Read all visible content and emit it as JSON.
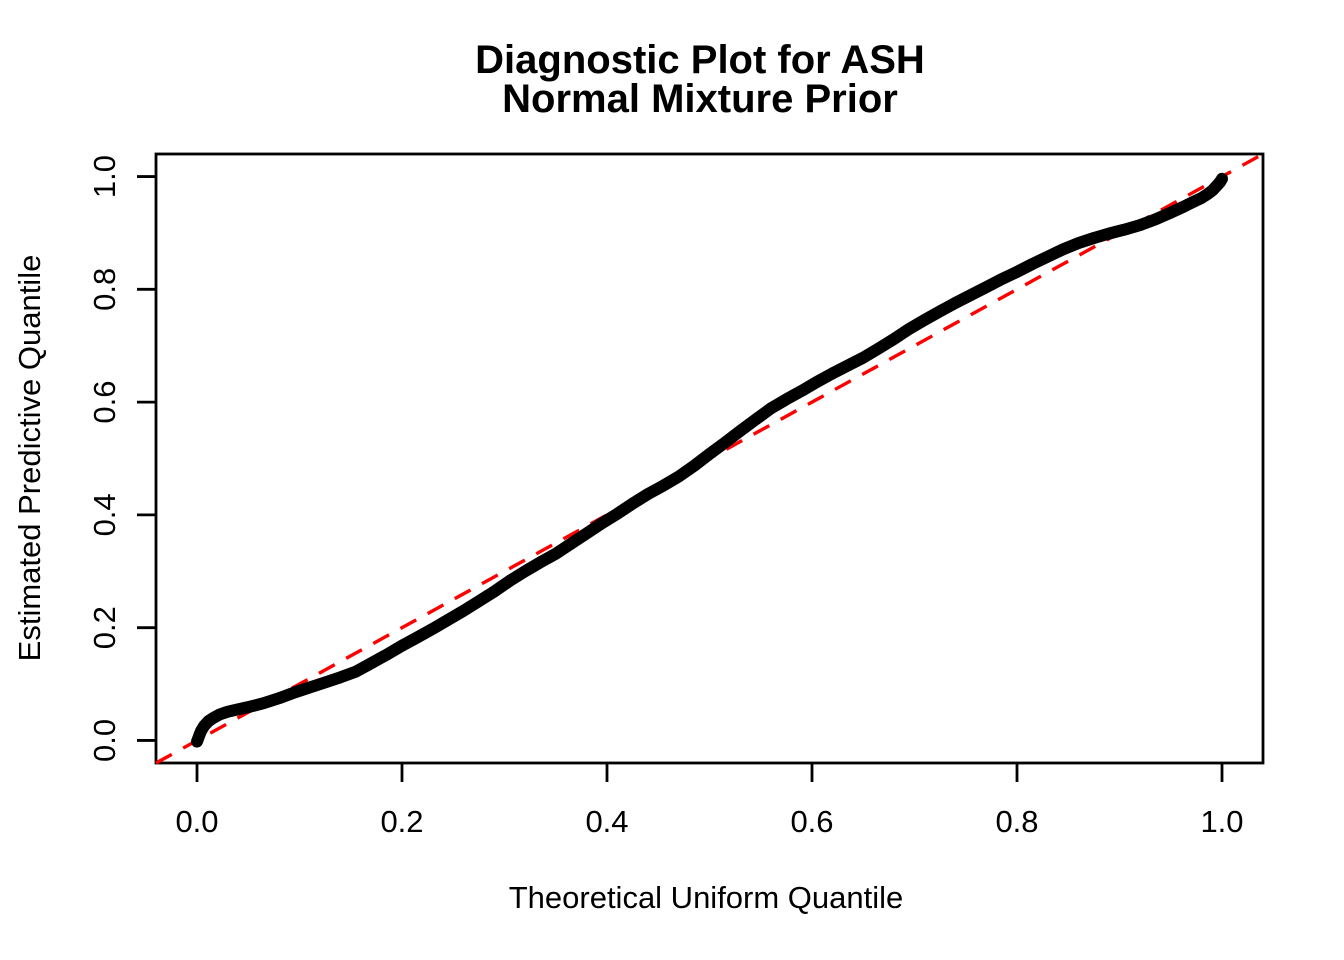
{
  "figure": {
    "title_line1": "Diagnostic Plot for ASH",
    "title_line2": "Normal Mixture Prior",
    "xlabel": "Theoretical Uniform Quantile",
    "ylabel": "Estimated Predictive Quantile"
  },
  "colors": {
    "background": "#ffffff",
    "axis": "#000000",
    "curve": "#000000",
    "reference_line": "#ff0000"
  },
  "chart_data": {
    "type": "line",
    "title": "Diagnostic Plot for ASH\nNormal Mixture Prior",
    "xlabel": "Theoretical Uniform Quantile",
    "ylabel": "Estimated Predictive Quantile",
    "xlim": [
      -0.04,
      1.04
    ],
    "ylim": [
      -0.04,
      1.04
    ],
    "grid": false,
    "legend": null,
    "x_ticks": {
      "values": [
        0.0,
        0.2,
        0.4,
        0.6,
        0.8,
        1.0
      ],
      "labels": [
        "0.0",
        "0.2",
        "0.4",
        "0.6",
        "0.8",
        "1.0"
      ]
    },
    "y_ticks": {
      "values": [
        0.0,
        0.2,
        0.4,
        0.6,
        0.8,
        1.0
      ],
      "labels": [
        "0.0",
        "0.2",
        "0.4",
        "0.6",
        "0.8",
        "1.0"
      ]
    },
    "series": [
      {
        "name": "estimated-vs-theoretical-quantile-curve",
        "type": "line",
        "color": "#000000",
        "stroke_width": 12,
        "dashed": false,
        "points": [
          [
            0.0,
            -0.002
          ],
          [
            0.002,
            0.008
          ],
          [
            0.004,
            0.017
          ],
          [
            0.007,
            0.026
          ],
          [
            0.011,
            0.034
          ],
          [
            0.016,
            0.04
          ],
          [
            0.022,
            0.046
          ],
          [
            0.03,
            0.051
          ],
          [
            0.04,
            0.055
          ],
          [
            0.052,
            0.06
          ],
          [
            0.065,
            0.066
          ],
          [
            0.08,
            0.075
          ],
          [
            0.095,
            0.085
          ],
          [
            0.11,
            0.094
          ],
          [
            0.125,
            0.103
          ],
          [
            0.14,
            0.112
          ],
          [
            0.155,
            0.122
          ],
          [
            0.17,
            0.137
          ],
          [
            0.185,
            0.152
          ],
          [
            0.2,
            0.168
          ],
          [
            0.215,
            0.183
          ],
          [
            0.23,
            0.198
          ],
          [
            0.245,
            0.214
          ],
          [
            0.26,
            0.23
          ],
          [
            0.275,
            0.247
          ],
          [
            0.29,
            0.264
          ],
          [
            0.305,
            0.283
          ],
          [
            0.32,
            0.3
          ],
          [
            0.335,
            0.316
          ],
          [
            0.35,
            0.331
          ],
          [
            0.365,
            0.349
          ],
          [
            0.38,
            0.367
          ],
          [
            0.395,
            0.385
          ],
          [
            0.41,
            0.402
          ],
          [
            0.425,
            0.42
          ],
          [
            0.44,
            0.437
          ],
          [
            0.455,
            0.452
          ],
          [
            0.47,
            0.468
          ],
          [
            0.485,
            0.487
          ],
          [
            0.5,
            0.508
          ],
          [
            0.515,
            0.528
          ],
          [
            0.53,
            0.549
          ],
          [
            0.545,
            0.569
          ],
          [
            0.56,
            0.589
          ],
          [
            0.575,
            0.605
          ],
          [
            0.59,
            0.62
          ],
          [
            0.605,
            0.636
          ],
          [
            0.62,
            0.651
          ],
          [
            0.635,
            0.665
          ],
          [
            0.65,
            0.679
          ],
          [
            0.665,
            0.695
          ],
          [
            0.68,
            0.712
          ],
          [
            0.695,
            0.73
          ],
          [
            0.71,
            0.746
          ],
          [
            0.725,
            0.761
          ],
          [
            0.74,
            0.776
          ],
          [
            0.755,
            0.79
          ],
          [
            0.77,
            0.804
          ],
          [
            0.785,
            0.818
          ],
          [
            0.8,
            0.831
          ],
          [
            0.815,
            0.845
          ],
          [
            0.83,
            0.858
          ],
          [
            0.845,
            0.871
          ],
          [
            0.86,
            0.882
          ],
          [
            0.875,
            0.891
          ],
          [
            0.89,
            0.899
          ],
          [
            0.905,
            0.906
          ],
          [
            0.92,
            0.914
          ],
          [
            0.935,
            0.924
          ],
          [
            0.95,
            0.936
          ],
          [
            0.962,
            0.946
          ],
          [
            0.972,
            0.955
          ],
          [
            0.98,
            0.962
          ],
          [
            0.986,
            0.969
          ],
          [
            0.991,
            0.976
          ],
          [
            0.995,
            0.984
          ],
          [
            0.998,
            0.99
          ],
          [
            1.0,
            0.996
          ]
        ]
      },
      {
        "name": "reference-diagonal",
        "type": "line",
        "color": "#ff0000",
        "stroke_width": 3.4,
        "dashed": true,
        "dash_pattern": [
          18,
          13
        ],
        "points": [
          [
            -0.04,
            -0.04
          ],
          [
            1.04,
            1.04
          ]
        ]
      }
    ]
  }
}
